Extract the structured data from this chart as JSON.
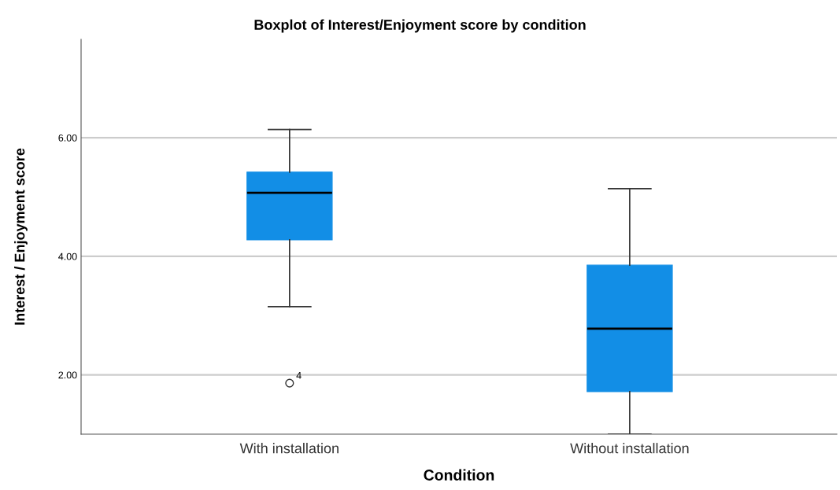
{
  "chart_data": {
    "type": "box",
    "title": "Boxplot of Interest/Enjoyment score by condition",
    "xlabel": "Condition",
    "ylabel": "Interest / Enjoyment score",
    "categories": [
      "With installation",
      "Without installation"
    ],
    "boxes": [
      {
        "low": 3.15,
        "q1": 4.28,
        "median": 5.07,
        "q3": 5.42,
        "high": 6.14,
        "outliers": [
          1.86
        ]
      },
      {
        "low": 1.0,
        "q1": 1.72,
        "median": 2.78,
        "q3": 3.85,
        "high": 5.14
      }
    ],
    "color": "#128ee6",
    "ylim": [
      1,
      7.66
    ],
    "yticks": [
      {
        "value": 2,
        "label": "2.00"
      },
      {
        "value": 4,
        "label": "4.00"
      },
      {
        "value": 6,
        "label": "6.00"
      }
    ],
    "grid": "y",
    "annotations": [
      "4"
    ]
  }
}
